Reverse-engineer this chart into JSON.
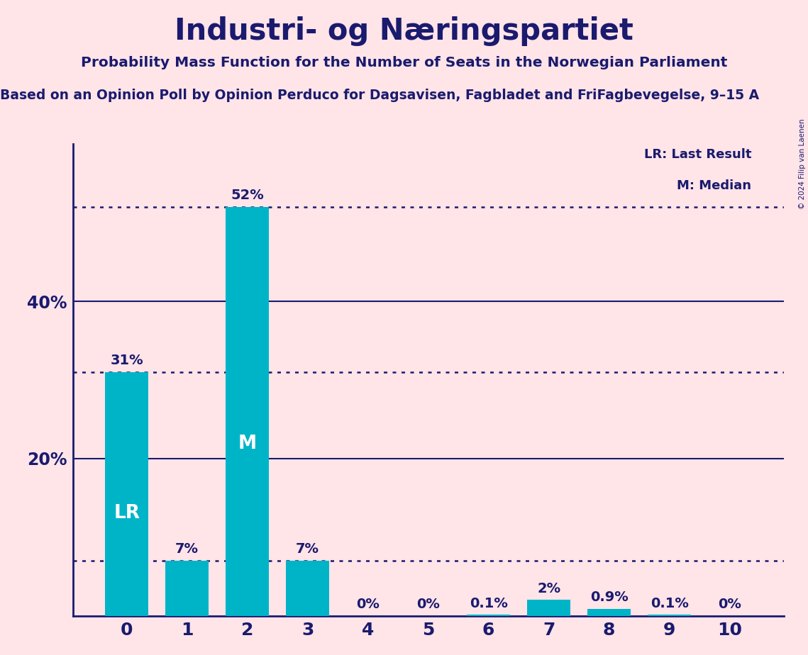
{
  "title": "Industri- og Næringspartiet",
  "subtitle": "Probability Mass Function for the Number of Seats in the Norwegian Parliament",
  "subtitle2": "Based on an Opinion Poll by Opinion Perduco for Dagsavisen, Fagbladet and FriFagbevegelse, 9–15 A",
  "copyright": "© 2024 Filip van Laenen",
  "categories": [
    0,
    1,
    2,
    3,
    4,
    5,
    6,
    7,
    8,
    9,
    10
  ],
  "values": [
    31,
    7,
    52,
    7,
    0,
    0,
    0.1,
    2,
    0.9,
    0.1,
    0
  ],
  "bar_color": "#00B4C8",
  "background_color": "#FFE4E8",
  "text_color": "#1a1a6e",
  "bar_labels": [
    "31%",
    "7%",
    "52%",
    "7%",
    "0%",
    "0%",
    "0.1%",
    "2%",
    "0.9%",
    "0.1%",
    "0%"
  ],
  "bar_label_inside": [
    "LR",
    "",
    "M",
    "",
    "",
    "",
    "",
    "",
    "",
    "",
    ""
  ],
  "dotted_lines": [
    52,
    31,
    7
  ],
  "solid_lines": [
    20,
    40
  ],
  "grid_color": "#1a1a6e",
  "dotted_line_color": "#1a1a6e",
  "legend_lr": "LR: Last Result",
  "legend_m": "M: Median",
  "ylim": [
    0,
    60
  ],
  "yticks": [
    20,
    40
  ],
  "ytick_labels": [
    "20%",
    "40%"
  ]
}
